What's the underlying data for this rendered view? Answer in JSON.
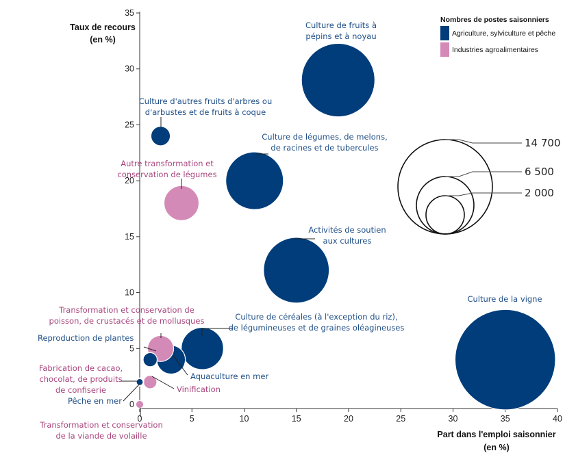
{
  "chart_data": {
    "type": "bubble",
    "xlabel_lines": [
      "Part dans l'emploi saisonnier",
      "(en %)"
    ],
    "ylabel_lines": [
      "Taux de recours",
      "(en %)"
    ],
    "xlim": [
      0,
      40
    ],
    "ylim": [
      0,
      35
    ],
    "x_ticks": [
      0,
      5,
      10,
      15,
      20,
      25,
      30,
      35,
      40
    ],
    "y_ticks": [
      0,
      5,
      10,
      15,
      20,
      25,
      30,
      35
    ],
    "grid": false,
    "legend": {
      "title": "Nombres de postes saisonniers",
      "position": "top-right",
      "items": [
        {
          "group": "agri",
          "label": "Agriculture, sylviculture et pêche",
          "color": "#003d7a"
        },
        {
          "group": "ind",
          "label": "Industries agroalimentaires",
          "color": "#d48ab7"
        }
      ]
    },
    "size_legend": [
      {
        "value": 14700,
        "label": "14 700"
      },
      {
        "value": 6500,
        "label": "6 500"
      },
      {
        "value": 2000,
        "label": "2 000"
      }
    ],
    "series": [
      {
        "group": "agri",
        "label_lines": [
          "Culture de fruits à",
          "pépins et à noyau"
        ],
        "x": 19,
        "y": 29,
        "size": 11500
      },
      {
        "group": "agri",
        "label_lines": [
          "Culture d'autres fruits d'arbres ou",
          "d'arbustes et de fruits à coque"
        ],
        "x": 2,
        "y": 24,
        "size": 800
      },
      {
        "group": "agri",
        "label_lines": [
          "Culture de légumes, de melons,",
          "de racines et de tubercules"
        ],
        "x": 11,
        "y": 20,
        "size": 7100
      },
      {
        "group": "ind",
        "label_lines": [
          "Autre transformation et",
          "conservation de légumes"
        ],
        "x": 4,
        "y": 18,
        "size": 2600
      },
      {
        "group": "agri",
        "label_lines": [
          "Activités de soutien",
          "aux cultures"
        ],
        "x": 15,
        "y": 12,
        "size": 9200
      },
      {
        "group": "agri",
        "label_lines": [
          "Culture de la vigne"
        ],
        "x": 35,
        "y": 4,
        "size": 21500
      },
      {
        "group": "agri",
        "label_lines": [
          "Culture de céréales (à l'exception du riz),",
          "de légumineuses et de graines oléagineuses"
        ],
        "x": 6,
        "y": 5,
        "size": 3800
      },
      {
        "group": "agri",
        "label_lines": [
          "Reproduction de plantes"
        ],
        "x": 1,
        "y": 4,
        "size": 420
      },
      {
        "group": "ind",
        "label_lines": [
          "Transformation et conservation de",
          "poisson, de crustacés et de mollusques"
        ],
        "x": 2,
        "y": 5,
        "size": 1450
      },
      {
        "group": "agri",
        "label_lines": [
          "Aquaculture en mer"
        ],
        "x": 3,
        "y": 4,
        "size": 1750
      },
      {
        "group": "ind",
        "label_lines": [
          "Vinification"
        ],
        "x": 1,
        "y": 2,
        "size": 380
      },
      {
        "group": "ind",
        "label_lines": [
          "Fabrication de cacao,",
          "chocolat, de produits",
          "de confiserie"
        ],
        "x": 0,
        "y": 2,
        "size": 140
      },
      {
        "group": "agri",
        "label_lines": [
          "Pêche en mer"
        ],
        "x": 0,
        "y": 2,
        "size": 100
      },
      {
        "group": "ind",
        "label_lines": [
          "Transformation et conservation",
          "de la viande de volaille"
        ],
        "x": 0,
        "y": 0,
        "size": 130
      }
    ]
  }
}
